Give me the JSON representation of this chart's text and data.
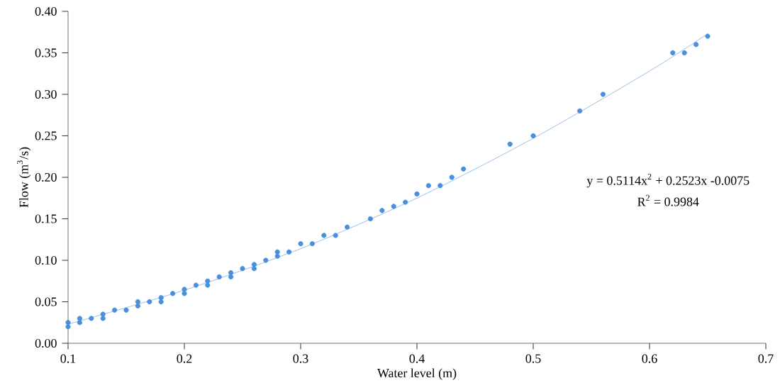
{
  "chart_data": {
    "type": "scatter",
    "xlabel": "Water level (m)",
    "ylabel": "Flow (m$^{3}$/s)",
    "xlim": [
      0.1,
      0.7
    ],
    "xticks": [
      0.1,
      0.2,
      0.3,
      0.4,
      0.5,
      0.6,
      0.7
    ],
    "ylim": [
      0,
      0.4
    ],
    "yticks": [
      {
        "value": 0,
        "label": "0.00"
      },
      {
        "value": 0.05,
        "label": "0.05"
      },
      {
        "value": 0.1,
        "label": "0.10"
      },
      {
        "value": 0.15,
        "label": "0.15"
      },
      {
        "value": 0.2,
        "label": "0.20"
      },
      {
        "value": 0.25,
        "label": "0.25"
      },
      {
        "value": 0.3,
        "label": "0.30"
      },
      {
        "value": 0.35,
        "label": "0.35"
      },
      {
        "value": 0.4,
        "label": "0.40"
      }
    ],
    "grid": false,
    "series": [
      {
        "marker": "circle",
        "color": "#4a8fdb",
        "x": [
          0.1,
          0.1,
          0.11,
          0.11,
          0.12,
          0.13,
          0.13,
          0.14,
          0.15,
          0.16,
          0.16,
          0.17,
          0.18,
          0.18,
          0.19,
          0.2,
          0.2,
          0.21,
          0.22,
          0.22,
          0.23,
          0.24,
          0.24,
          0.25,
          0.26,
          0.26,
          0.27,
          0.28,
          0.28,
          0.29,
          0.3,
          0.31,
          0.32,
          0.33,
          0.34,
          0.36,
          0.37,
          0.38,
          0.39,
          0.4,
          0.41,
          0.42,
          0.43,
          0.44,
          0.48,
          0.5,
          0.54,
          0.56,
          0.62,
          0.63,
          0.64,
          0.65
        ],
        "values": [
          0.02,
          0.025,
          0.025,
          0.03,
          0.03,
          0.03,
          0.035,
          0.04,
          0.04,
          0.045,
          0.05,
          0.05,
          0.05,
          0.055,
          0.06,
          0.06,
          0.065,
          0.07,
          0.07,
          0.075,
          0.08,
          0.08,
          0.085,
          0.09,
          0.09,
          0.095,
          0.1,
          0.105,
          0.11,
          0.11,
          0.12,
          0.12,
          0.13,
          0.13,
          0.14,
          0.15,
          0.16,
          0.165,
          0.17,
          0.18,
          0.19,
          0.19,
          0.2,
          0.21,
          0.24,
          0.25,
          0.28,
          0.3,
          0.35,
          0.35,
          0.36,
          0.37
        ]
      },
      {
        "type": "line",
        "marker": "none",
        "color": "#7fb0e0",
        "x": [
          0.1,
          0.2,
          0.3,
          0.4,
          0.5,
          0.6,
          0.65
        ],
        "values": [
          0.023,
          0.064,
          0.114,
          0.175,
          0.247,
          0.328,
          0.373
        ]
      }
    ],
    "annotations": [
      "y = 0.5114x$^{2}$ + 0.2523x -0.0075",
      "R$^{2}$ = 0.9984"
    ]
  }
}
